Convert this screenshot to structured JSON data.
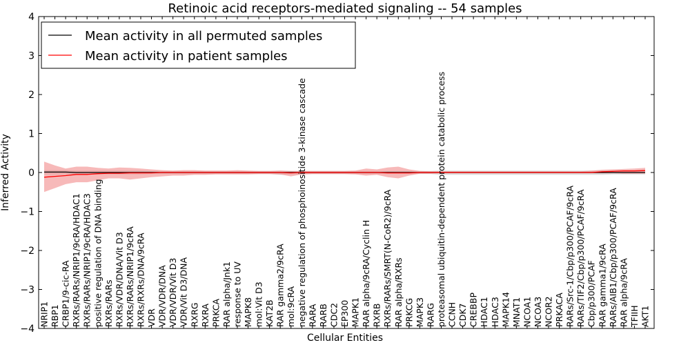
{
  "chart_data": {
    "type": "line",
    "title": "Retinoic acid receptors-mediated signaling -- 54 samples",
    "xlabel": "Cellular Entities",
    "ylabel": "Inferred Activity",
    "ylim": [
      -4,
      4
    ],
    "yticks": [
      -4,
      -3,
      -2,
      -1,
      0,
      1,
      2,
      3,
      4
    ],
    "ytick_labels": [
      "−4",
      "−3",
      "−2",
      "−1",
      "0",
      "1",
      "2",
      "3",
      "4"
    ],
    "grid": false,
    "legend_position": "top-left",
    "categories": [
      "NRIP1",
      "RBP1",
      "CRBP1/9-cic-RA",
      "RXRs/RARs/NRIP1/9cRA/HDAC1",
      "RXRs/RARs/NRIP1/9cRA/HDAC3",
      "positive regulation of DNA binding",
      "RXRs/RARs",
      "RXRs/VDR/DNA/Vit D3",
      "RXRs/RARs/NRIP1/9cRA",
      "RXRs/RXRs/DNA/9cRA",
      "VDR",
      "VDR/VDR/DNA",
      "VDR/VDR/Vit D3",
      "VDR/Vit D3/DNA",
      "RXRG",
      "RXRA",
      "PRKCA",
      "RAR alpha/Jnk1",
      "response to UV",
      "MAPK8",
      "mol:Vit D3",
      "KAT2B",
      "RAR gamma2/9cRA",
      "mol:9cRA",
      "negative regulation of phosphoinositide 3-kinase cascade",
      "RARA",
      "RARB",
      "CDC2",
      "EP300",
      "MAPK1",
      "RAR alpha/9cRA/Cyclin H",
      "RXRB",
      "RXRs/RARs/SMRT(N-CoR2)/9cRA",
      "RAR alpha/RXRs",
      "PRKCG",
      "MAPK3",
      "RARG",
      "proteasomal ubiquitin-dependent protein catabolic process",
      "CCNH",
      "CDK7",
      "CREBBP",
      "HDAC1",
      "HDAC3",
      "MAPK14",
      "MNAT1",
      "NCOA1",
      "NCOA3",
      "NCOR2",
      "PRKACA",
      "RARs/Src-1/Cbp/p300/PCAF/9cRA",
      "RARs/TIF2/Cbp/p300/PCAF/9cRA",
      "Cbp/p300/PCAF",
      "RAR gamma1/9cRA",
      "RARs/AIB1/Cbp/p300/PCAF/9cRA",
      "RAR alpha/9cRA",
      "TFIIH",
      "AKT1"
    ],
    "series": [
      {
        "name": "Mean activity in all permuted samples",
        "color": "#000000",
        "band_color": "#b0b0b0",
        "values": [
          0.01,
          0.01,
          0.01,
          0.0,
          0.0,
          0.0,
          0.0,
          0.0,
          0.0,
          0.0,
          0.0,
          0.0,
          0.0,
          0.0,
          0.0,
          0.0,
          0.0,
          0.0,
          0.0,
          0.0,
          0.0,
          0.0,
          0.0,
          0.0,
          0.0,
          0.0,
          0.0,
          0.0,
          0.0,
          0.0,
          0.0,
          0.0,
          0.0,
          0.0,
          0.0,
          0.0,
          0.0,
          0.0,
          0.0,
          0.0,
          0.0,
          0.0,
          0.0,
          0.0,
          0.0,
          0.0,
          0.0,
          0.0,
          0.0,
          0.0,
          0.0,
          0.0,
          0.0,
          0.0,
          0.0,
          0.0,
          0.0
        ],
        "lower": [
          -0.05,
          -0.05,
          -0.05,
          -0.05,
          -0.05,
          -0.05,
          -0.05,
          -0.05,
          -0.05,
          -0.05,
          -0.04,
          -0.04,
          -0.04,
          -0.04,
          -0.04,
          -0.04,
          -0.04,
          -0.04,
          -0.04,
          -0.04,
          -0.04,
          -0.04,
          -0.06,
          -0.05,
          -0.05,
          -0.04,
          -0.04,
          -0.04,
          -0.04,
          -0.04,
          -0.04,
          -0.04,
          -0.04,
          -0.04,
          -0.04,
          -0.04,
          -0.04,
          -0.06,
          -0.06,
          -0.06,
          -0.06,
          -0.06,
          -0.06,
          -0.06,
          -0.06,
          -0.06,
          -0.06,
          -0.06,
          -0.06,
          -0.06,
          -0.06,
          -0.06,
          -0.06,
          -0.05,
          -0.05,
          -0.05,
          -0.05
        ],
        "upper": [
          0.06,
          0.06,
          0.06,
          0.05,
          0.05,
          0.05,
          0.05,
          0.05,
          0.05,
          0.05,
          0.04,
          0.04,
          0.04,
          0.04,
          0.04,
          0.04,
          0.04,
          0.04,
          0.04,
          0.04,
          0.04,
          0.04,
          0.05,
          0.04,
          0.04,
          0.04,
          0.04,
          0.04,
          0.04,
          0.04,
          0.04,
          0.04,
          0.04,
          0.04,
          0.04,
          0.04,
          0.04,
          0.05,
          0.05,
          0.05,
          0.05,
          0.05,
          0.05,
          0.05,
          0.05,
          0.05,
          0.05,
          0.05,
          0.05,
          0.05,
          0.05,
          0.05,
          0.05,
          0.05,
          0.05,
          0.05,
          0.05
        ]
      },
      {
        "name": "Mean activity in patient samples",
        "color": "#ff0000",
        "band_color": "#f08080",
        "values": [
          -0.12,
          -0.1,
          -0.08,
          -0.05,
          -0.05,
          -0.03,
          -0.02,
          -0.02,
          -0.01,
          -0.01,
          -0.01,
          0.0,
          0.0,
          0.0,
          0.0,
          0.0,
          0.0,
          0.0,
          0.0,
          0.0,
          0.0,
          0.0,
          0.0,
          -0.01,
          0.0,
          0.0,
          0.0,
          0.0,
          0.0,
          0.0,
          0.0,
          0.0,
          -0.01,
          -0.01,
          -0.01,
          0.0,
          0.0,
          0.0,
          0.0,
          0.0,
          0.0,
          0.0,
          0.0,
          0.0,
          0.0,
          0.0,
          0.0,
          0.0,
          0.0,
          0.0,
          0.0,
          0.0,
          0.02,
          0.03,
          0.04,
          0.04,
          0.05
        ],
        "lower": [
          -0.5,
          -0.4,
          -0.3,
          -0.25,
          -0.25,
          -0.2,
          -0.15,
          -0.15,
          -0.18,
          -0.15,
          -0.12,
          -0.1,
          -0.08,
          -0.08,
          -0.06,
          -0.06,
          -0.05,
          -0.05,
          -0.05,
          -0.05,
          -0.04,
          -0.04,
          -0.05,
          -0.1,
          -0.05,
          -0.04,
          -0.04,
          -0.04,
          -0.04,
          -0.05,
          -0.08,
          -0.06,
          -0.12,
          -0.15,
          -0.08,
          -0.03,
          -0.03,
          -0.02,
          -0.02,
          -0.02,
          -0.02,
          -0.02,
          -0.02,
          -0.02,
          -0.02,
          -0.02,
          -0.02,
          -0.02,
          -0.02,
          -0.02,
          -0.02,
          -0.02,
          -0.02,
          -0.02,
          -0.03,
          -0.03,
          -0.03
        ],
        "upper": [
          0.28,
          0.18,
          0.1,
          0.15,
          0.15,
          0.12,
          0.1,
          0.13,
          0.12,
          0.1,
          0.08,
          0.06,
          0.05,
          0.06,
          0.06,
          0.05,
          0.05,
          0.05,
          0.06,
          0.05,
          0.04,
          0.04,
          0.05,
          0.04,
          0.04,
          0.04,
          0.04,
          0.04,
          0.04,
          0.05,
          0.1,
          0.08,
          0.13,
          0.15,
          0.08,
          0.04,
          0.03,
          0.03,
          0.03,
          0.03,
          0.03,
          0.03,
          0.03,
          0.03,
          0.03,
          0.03,
          0.03,
          0.03,
          0.03,
          0.03,
          0.03,
          0.05,
          0.07,
          0.08,
          0.09,
          0.1,
          0.12
        ]
      }
    ]
  }
}
